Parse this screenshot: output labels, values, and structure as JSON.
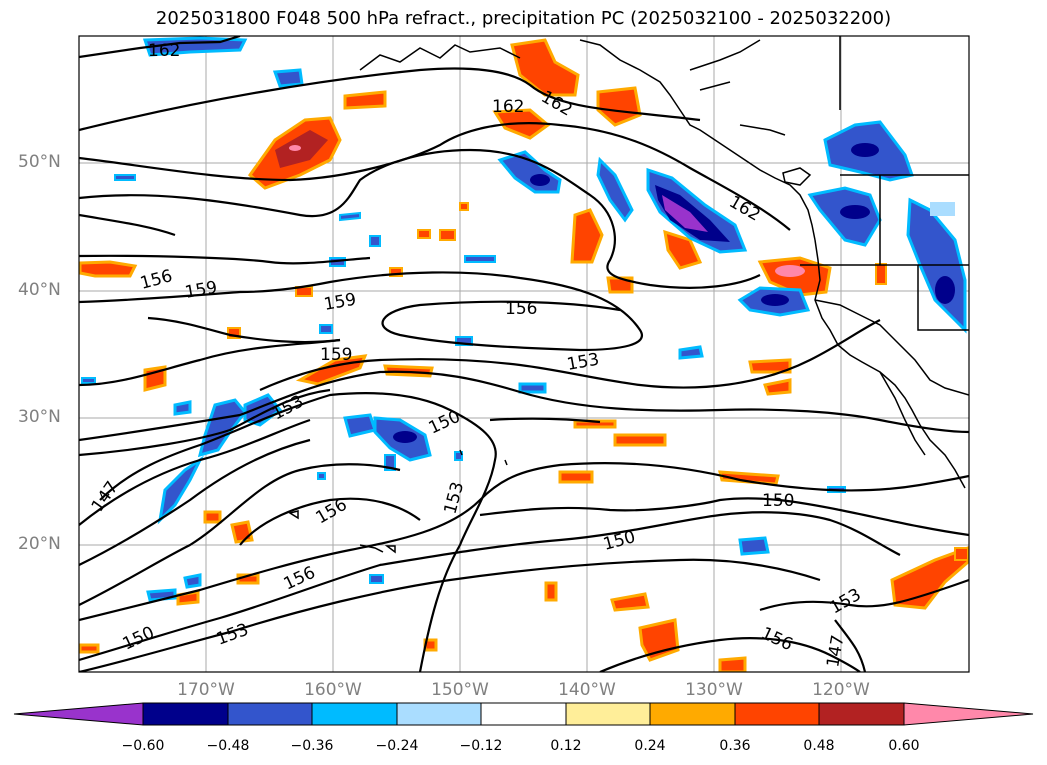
{
  "title": "2025031800 F048 500 hPa refract., precipitation PC (2025032100 - 2025032200)",
  "map": {
    "lat_labels": [
      "50°N",
      "40°N",
      "30°N",
      "20°N"
    ],
    "lon_labels": [
      "170°W",
      "160°W",
      "150°W",
      "140°W",
      "130°W",
      "120°W"
    ],
    "contour_labels": [
      "162",
      "162",
      "162",
      "162",
      "156",
      "159",
      "159",
      "156",
      "159",
      "153",
      "153",
      "150",
      "147",
      "156",
      "153",
      "156",
      "150",
      "153",
      "150",
      "150",
      "153",
      "156",
      "147"
    ]
  },
  "colorbar": {
    "tick_labels": [
      "−0.60",
      "−0.48",
      "−0.36",
      "−0.24",
      "−0.12",
      "0.12",
      "0.24",
      "0.36",
      "0.48",
      "0.60"
    ],
    "colors": [
      "#9933cc",
      "#00008b",
      "#3355cc",
      "#00bbff",
      "#aaddff",
      "#ffffff",
      "#ffee99",
      "#ffaa00",
      "#ff4400",
      "#b22222",
      "#ff88aa"
    ]
  }
}
